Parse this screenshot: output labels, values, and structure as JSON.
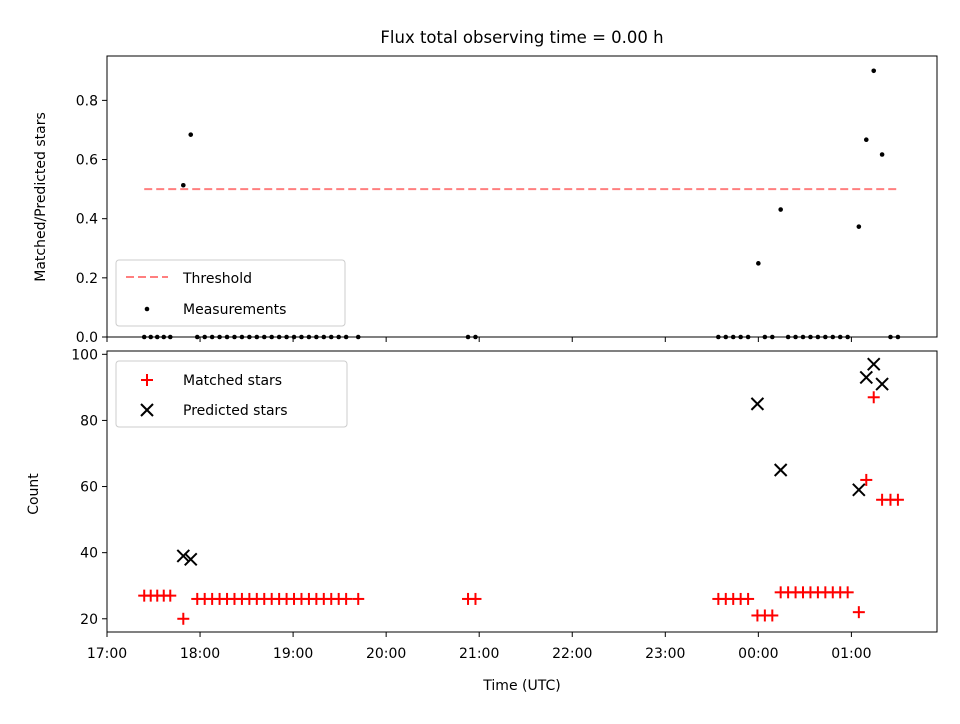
{
  "figure": {
    "title": "Flux total observing time = 0.00 h"
  },
  "chart_data": [
    {
      "type": "scatter",
      "panel": "top",
      "title": "Flux total observing time = 0.00 h",
      "xlabel": "",
      "ylabel": "Matched/Predicted stars",
      "ylim": [
        0,
        0.95
      ],
      "yticks": [
        "0.0",
        "0.2",
        "0.4",
        "0.6",
        "0.8"
      ],
      "xlim_hours": [
        17.0,
        25.92
      ],
      "grid": false,
      "legend_position": "lower-left",
      "series": [
        {
          "name": "Threshold",
          "kind": "dashed-line",
          "color": "#ff7f7f",
          "x": [
            17.4,
            25.5
          ],
          "y": [
            0.5,
            0.5
          ]
        },
        {
          "name": "Measurements",
          "kind": "dots",
          "color": "#000000",
          "points": [
            [
              17.4,
              0
            ],
            [
              17.47,
              0
            ],
            [
              17.54,
              0
            ],
            [
              17.61,
              0
            ],
            [
              17.68,
              0
            ],
            [
              17.82,
              0.513
            ],
            [
              17.9,
              0.684
            ],
            [
              17.97,
              0
            ],
            [
              18.05,
              0
            ],
            [
              18.13,
              0
            ],
            [
              18.21,
              0
            ],
            [
              18.29,
              0
            ],
            [
              18.37,
              0
            ],
            [
              18.45,
              0
            ],
            [
              18.53,
              0
            ],
            [
              18.61,
              0
            ],
            [
              18.69,
              0
            ],
            [
              18.77,
              0
            ],
            [
              18.85,
              0
            ],
            [
              18.93,
              0
            ],
            [
              19.01,
              0
            ],
            [
              19.09,
              0
            ],
            [
              19.17,
              0
            ],
            [
              19.25,
              0
            ],
            [
              19.33,
              0
            ],
            [
              19.41,
              0
            ],
            [
              19.49,
              0
            ],
            [
              19.57,
              0
            ],
            [
              19.7,
              0
            ],
            [
              20.88,
              0
            ],
            [
              20.96,
              0
            ],
            [
              23.57,
              0
            ],
            [
              23.65,
              0
            ],
            [
              23.73,
              0
            ],
            [
              23.81,
              0
            ],
            [
              23.89,
              0
            ],
            [
              24.0,
              0.249
            ],
            [
              24.07,
              0
            ],
            [
              24.15,
              0
            ],
            [
              24.24,
              0.431
            ],
            [
              24.32,
              0
            ],
            [
              24.4,
              0
            ],
            [
              24.48,
              0
            ],
            [
              24.56,
              0
            ],
            [
              24.64,
              0
            ],
            [
              24.72,
              0
            ],
            [
              24.8,
              0
            ],
            [
              24.88,
              0
            ],
            [
              24.96,
              0
            ],
            [
              25.08,
              0.373
            ],
            [
              25.16,
              0.667
            ],
            [
              25.24,
              0.9
            ],
            [
              25.33,
              0.617
            ],
            [
              25.42,
              0
            ],
            [
              25.5,
              0
            ]
          ]
        }
      ]
    },
    {
      "type": "scatter",
      "panel": "bottom",
      "xlabel": "Time (UTC)",
      "ylabel": "Count",
      "ylim": [
        16,
        101
      ],
      "yticks": [
        "20",
        "40",
        "60",
        "80",
        "100"
      ],
      "xlim_hours": [
        17.0,
        25.92
      ],
      "xtick_labels": [
        "17:00",
        "18:00",
        "19:00",
        "20:00",
        "21:00",
        "22:00",
        "23:00",
        "00:00",
        "01:00"
      ],
      "grid": false,
      "legend_position": "upper-left",
      "series": [
        {
          "name": "Matched stars",
          "marker": "plus",
          "color": "#ff0000",
          "points": [
            [
              17.4,
              27
            ],
            [
              17.47,
              27
            ],
            [
              17.54,
              27
            ],
            [
              17.61,
              27
            ],
            [
              17.68,
              27
            ],
            [
              17.82,
              20
            ],
            [
              17.97,
              26
            ],
            [
              18.05,
              26
            ],
            [
              18.13,
              26
            ],
            [
              18.21,
              26
            ],
            [
              18.29,
              26
            ],
            [
              18.37,
              26
            ],
            [
              18.45,
              26
            ],
            [
              18.53,
              26
            ],
            [
              18.61,
              26
            ],
            [
              18.69,
              26
            ],
            [
              18.77,
              26
            ],
            [
              18.85,
              26
            ],
            [
              18.93,
              26
            ],
            [
              19.01,
              26
            ],
            [
              19.09,
              26
            ],
            [
              19.17,
              26
            ],
            [
              19.25,
              26
            ],
            [
              19.33,
              26
            ],
            [
              19.41,
              26
            ],
            [
              19.49,
              26
            ],
            [
              19.57,
              26
            ],
            [
              19.7,
              26
            ],
            [
              20.88,
              26
            ],
            [
              20.96,
              26
            ],
            [
              23.57,
              26
            ],
            [
              23.65,
              26
            ],
            [
              23.73,
              26
            ],
            [
              23.81,
              26
            ],
            [
              23.89,
              26
            ],
            [
              23.99,
              21
            ],
            [
              24.07,
              21
            ],
            [
              24.15,
              21
            ],
            [
              24.24,
              28
            ],
            [
              24.32,
              28
            ],
            [
              24.4,
              28
            ],
            [
              24.48,
              28
            ],
            [
              24.56,
              28
            ],
            [
              24.64,
              28
            ],
            [
              24.72,
              28
            ],
            [
              24.8,
              28
            ],
            [
              24.88,
              28
            ],
            [
              24.96,
              28
            ],
            [
              25.08,
              22
            ],
            [
              25.16,
              62
            ],
            [
              25.24,
              87
            ],
            [
              25.33,
              56
            ],
            [
              25.42,
              56
            ],
            [
              25.5,
              56
            ]
          ]
        },
        {
          "name": "Predicted stars",
          "marker": "x",
          "color": "#000000",
          "points": [
            [
              17.82,
              39
            ],
            [
              17.9,
              38
            ],
            [
              23.99,
              85
            ],
            [
              24.24,
              65
            ],
            [
              25.08,
              59
            ],
            [
              25.16,
              93
            ],
            [
              25.24,
              97
            ],
            [
              25.33,
              91
            ]
          ]
        }
      ]
    }
  ]
}
